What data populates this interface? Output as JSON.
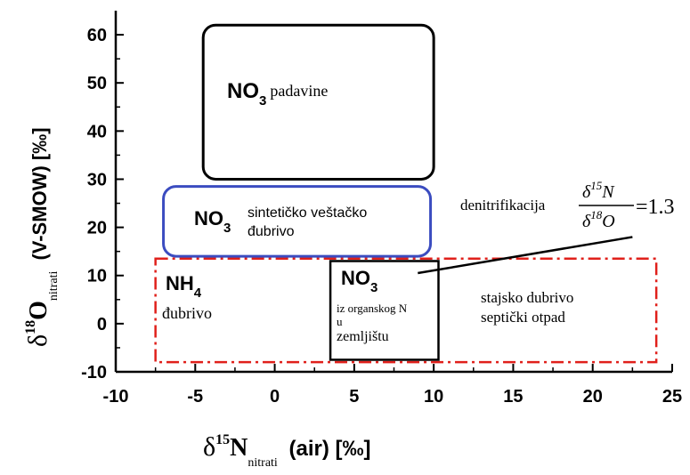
{
  "chart_data": {
    "type": "scatter",
    "xlabel": {
      "delta": "δ",
      "sup": "15",
      "element": "N",
      "sub": "nitrati",
      "rest": "(air) [‰]"
    },
    "ylabel": {
      "delta": "δ",
      "sup": "18",
      "element": "O",
      "sub": "nitrati",
      "rest": "(V-SMOW) [‰]"
    },
    "xlim": [
      -10,
      25
    ],
    "ylim": [
      -10,
      65
    ],
    "x_ticks": [
      -10,
      -5,
      0,
      5,
      10,
      15,
      20,
      25
    ],
    "y_ticks": [
      -10,
      0,
      10,
      20,
      30,
      40,
      50,
      60
    ],
    "grid": false,
    "regions": [
      {
        "id": "precip",
        "shape": "rounded-rect",
        "color": "#000000",
        "line": "solid",
        "x_range": [
          -4.5,
          10
        ],
        "y_range": [
          30,
          62
        ],
        "label": {
          "species": "NO",
          "subscript": "3",
          "text": "padavine"
        }
      },
      {
        "id": "synthetic",
        "shape": "rounded-rect",
        "color": "#3b4cc0",
        "line": "solid",
        "x_range": [
          -7,
          9.8
        ],
        "y_range": [
          14,
          28.5
        ],
        "label": {
          "species": "NO",
          "subscript": "3",
          "text_lines": [
            "sintetičko veštačko",
            "đubrivo"
          ]
        }
      },
      {
        "id": "manure",
        "shape": "rect",
        "color": "#e0201b",
        "line": "dash-dot",
        "x_range": [
          -7.5,
          24
        ],
        "y_range": [
          -8,
          13.5
        ],
        "label": {
          "text_lines": [
            "stajsko dubrivo",
            "septički otpad"
          ]
        }
      },
      {
        "id": "ammonium",
        "shape": "label-only",
        "label": {
          "species": "NH",
          "subscript": "4",
          "text": "đubrivo"
        }
      },
      {
        "id": "soil",
        "shape": "rect",
        "color": "#000000",
        "line": "solid",
        "x_range": [
          3.5,
          10.3
        ],
        "y_range": [
          -7.5,
          13
        ],
        "label": {
          "species": "NO",
          "subscript": "3",
          "text_lines": [
            "iz organskog N",
            "u",
            "zemljištu"
          ]
        }
      }
    ],
    "annotation": {
      "text": "denitrifikacija",
      "ratio_numerator": {
        "delta": "δ",
        "sup": "15",
        "element": "N"
      },
      "ratio_denominator": {
        "delta": "δ",
        "sup": "18",
        "element": "O"
      },
      "equals": "=1.3",
      "arrow_from": [
        22.5,
        18
      ],
      "arrow_to": [
        9,
        10.5
      ]
    }
  }
}
